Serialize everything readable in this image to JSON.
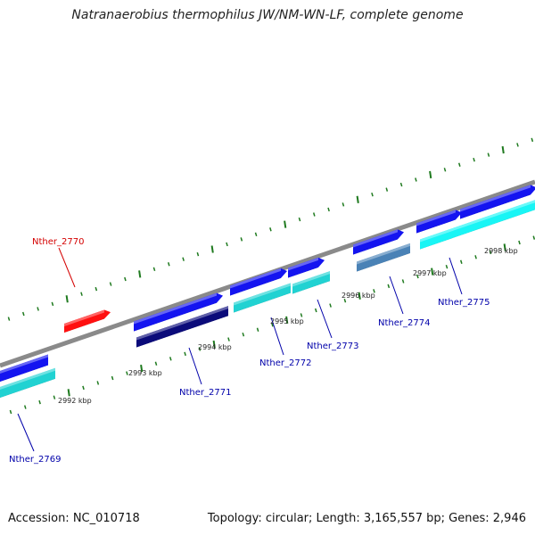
{
  "title": "Natranaerobius thermophilus JW/NM-WN-LF, complete genome",
  "footer": {
    "accession": "Accession: NC_010718",
    "summary": "Topology: circular; Length: 3,165,557 bp; Genes: 2,946"
  },
  "colors": {
    "backbone": "#8a8a8a",
    "tick": "#1f7a1f",
    "gene_label": "#0000aa",
    "highlight_label": "#d40000",
    "red": "#ff1010",
    "blue": "#1414f0",
    "navy": "#0b0b7a",
    "cyan": "#21d2d2",
    "bright_cyan": "#19f5f5",
    "steel": "#4a82b6"
  },
  "scale_labels": [
    "2992 kbp",
    "2993 kbp",
    "2994 kbp",
    "2995 kbp",
    "2996 kbp",
    "2997 kbp",
    "2998 kbp"
  ],
  "genes": [
    {
      "name": "Nther_2770",
      "color": "red",
      "highlight": true
    },
    {
      "name": "Nther_2769",
      "color": "blue"
    },
    {
      "name": "Nther_2771",
      "color": "navy"
    },
    {
      "name": "Nther_2772",
      "color": "cyan"
    },
    {
      "name": "Nther_2773",
      "color": "cyan"
    },
    {
      "name": "Nther_2774",
      "color": "steel"
    },
    {
      "name": "Nther_2775",
      "color": "bright_cyan"
    }
  ]
}
